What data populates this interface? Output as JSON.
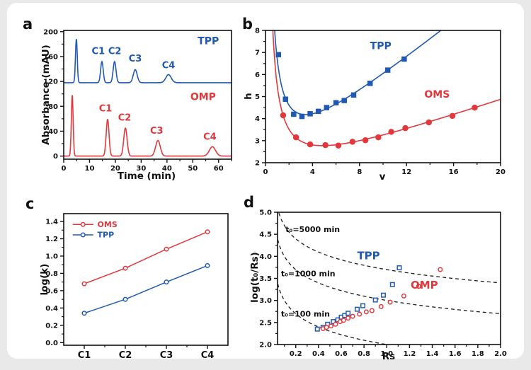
{
  "colors": {
    "blue": "#2059b2",
    "red": "#e2383c",
    "axis": "#111111"
  },
  "chart_data": [
    {
      "panel": "a",
      "type": "line",
      "xlabel": "Time (min)",
      "ylabel": "Absorbance (mAU)",
      "xlim": [
        0,
        65
      ],
      "ylim": [
        -5,
        202
      ],
      "xticks": [
        0,
        10,
        20,
        30,
        40,
        50,
        60
      ],
      "yticks": [
        0,
        40,
        80,
        120,
        160,
        200
      ],
      "xminor": 5,
      "yminor": 20,
      "series": [
        {
          "name": "TPP",
          "color": "blue",
          "baseline": 118,
          "peaks": [
            {
              "t": 4.9,
              "h": 70,
              "w": 0.35
            },
            {
              "t": 14.8,
              "h": 34,
              "w": 0.5
            },
            {
              "t": 19.7,
              "h": 34,
              "w": 0.55
            },
            {
              "t": 27.7,
              "h": 21,
              "w": 0.75
            },
            {
              "t": 40.6,
              "h": 13,
              "w": 1.05
            }
          ]
        },
        {
          "name": "OMP",
          "color": "red",
          "baseline": 0,
          "peaks": [
            {
              "t": 3.3,
              "h": 98,
              "w": 0.35
            },
            {
              "t": 17.0,
              "h": 59,
              "w": 0.55
            },
            {
              "t": 23.9,
              "h": 45,
              "w": 0.65
            },
            {
              "t": 36.5,
              "h": 25,
              "w": 0.9
            },
            {
              "t": 57.6,
              "h": 15,
              "w": 1.2
            }
          ]
        }
      ],
      "annotations": [
        {
          "text": "TPP",
          "x": 56,
          "y": 180,
          "color": "blue",
          "size": 14
        },
        {
          "text": "OMP",
          "x": 54,
          "y": 90,
          "color": "red",
          "size": 14
        },
        {
          "text": "C1",
          "x": 13.4,
          "y": 164,
          "color": "blue"
        },
        {
          "text": "C2",
          "x": 19.8,
          "y": 164,
          "color": "blue"
        },
        {
          "text": "C3",
          "x": 27.7,
          "y": 152,
          "color": "blue"
        },
        {
          "text": "C4",
          "x": 40.6,
          "y": 141,
          "color": "blue"
        },
        {
          "text": "C1",
          "x": 16.2,
          "y": 72,
          "color": "red"
        },
        {
          "text": "C2",
          "x": 23.6,
          "y": 57,
          "color": "red"
        },
        {
          "text": "C3",
          "x": 36.0,
          "y": 36,
          "color": "red"
        },
        {
          "text": "C4",
          "x": 56.6,
          "y": 26,
          "color": "red"
        }
      ]
    },
    {
      "panel": "b",
      "type": "scatter",
      "xlabel": "v",
      "ylabel": "h",
      "xlim": [
        0,
        20
      ],
      "ylim": [
        2,
        8
      ],
      "xticks": [
        0,
        4,
        8,
        12,
        16,
        20
      ],
      "yticks": [
        2,
        3,
        4,
        5,
        6,
        7,
        8
      ],
      "xminor": 2,
      "yminor": 0.5,
      "series": [
        {
          "name": "TPP",
          "color": "blue",
          "marker": "square-filled",
          "size": 6.5,
          "fit": {
            "A": 1.25,
            "B": 5.0,
            "C": 0.43
          },
          "points": [
            [
              1.1,
              6.9
            ],
            [
              1.7,
              4.88
            ],
            [
              2.4,
              4.2
            ],
            [
              3.1,
              4.1
            ],
            [
              3.8,
              4.22
            ],
            [
              4.5,
              4.33
            ],
            [
              5.2,
              4.5
            ],
            [
              6.0,
              4.72
            ],
            [
              6.7,
              4.82
            ],
            [
              7.5,
              5.07
            ],
            [
              8.9,
              5.6
            ],
            [
              10.4,
              6.2
            ],
            [
              11.8,
              6.7
            ]
          ]
        },
        {
          "name": "OMS",
          "color": "red",
          "marker": "circle-filled",
          "size": 7.5,
          "fit": {
            "A": 1.0,
            "B": 4.3,
            "C": 0.183
          },
          "points": [
            [
              1.5,
              4.15
            ],
            [
              2.6,
              3.15
            ],
            [
              3.8,
              2.83
            ],
            [
              5.1,
              2.8
            ],
            [
              6.2,
              2.78
            ],
            [
              7.4,
              2.95
            ],
            [
              8.5,
              3.02
            ],
            [
              9.6,
              3.15
            ],
            [
              10.7,
              3.4
            ],
            [
              11.9,
              3.57
            ],
            [
              13.9,
              3.83
            ],
            [
              15.9,
              4.12
            ],
            [
              17.8,
              4.5
            ]
          ]
        }
      ],
      "annotations": [
        {
          "text": "TPP",
          "x": 9.8,
          "y": 7.15,
          "color": "blue",
          "size": 14
        },
        {
          "text": "OMS",
          "x": 14.6,
          "y": 4.95,
          "color": "red",
          "size": 14
        }
      ]
    },
    {
      "panel": "c",
      "type": "line",
      "xlabel": "",
      "ylabel": "log(k)",
      "categories": [
        "C1",
        "C2",
        "C3",
        "C4"
      ],
      "xlim": [
        0,
        4
      ],
      "ylim": [
        -0.03,
        1.49
      ],
      "yticks": [
        0,
        0.2,
        0.4,
        0.6,
        0.8,
        1.0,
        1.2,
        1.4
      ],
      "ydec": 1,
      "yminor": 0.1,
      "xcats": [
        {
          "label": "C1",
          "x": 0.5
        },
        {
          "label": "C2",
          "x": 1.5
        },
        {
          "label": "C3",
          "x": 2.5
        },
        {
          "label": "C4",
          "x": 3.5
        }
      ],
      "xminors": [
        1,
        2,
        3
      ],
      "series": [
        {
          "name": "OMS",
          "color": "red",
          "marker": "circle-open",
          "size": 5.5,
          "connect": true,
          "points": [
            [
              0.5,
              0.68
            ],
            [
              1.5,
              0.86
            ],
            [
              2.5,
              1.08
            ],
            [
              3.5,
              1.28
            ]
          ]
        },
        {
          "name": "TPP",
          "color": "blue",
          "marker": "circle-open",
          "size": 5.5,
          "connect": true,
          "points": [
            [
              0.5,
              0.34
            ],
            [
              1.5,
              0.5
            ],
            [
              2.5,
              0.7
            ],
            [
              3.5,
              0.89
            ]
          ]
        }
      ],
      "legend": {
        "x1": 0.22,
        "x2": 0.72,
        "tx": 0.82,
        "items": [
          {
            "label": "OMS",
            "color": "red",
            "y": 1.365
          },
          {
            "label": "TPP",
            "color": "blue",
            "y": 1.245
          }
        ]
      }
    },
    {
      "panel": "d",
      "type": "scatter",
      "xlabel": "Rs",
      "ylabel": "log(t₀/Rs)",
      "xlim": [
        0.04,
        2.0
      ],
      "ylim": [
        2.0,
        5.0
      ],
      "xticks": [
        0.2,
        0.4,
        0.6,
        0.8,
        1.0,
        1.2,
        1.4,
        1.6,
        1.8,
        2.0
      ],
      "yticks": [
        2.0,
        2.5,
        3.0,
        3.5,
        4.0,
        4.5,
        5.0
      ],
      "xdec": 1,
      "ydec": 1,
      "xminor": 0.1,
      "yminor": 0.25,
      "isochrones": [
        {
          "t0": 5000,
          "label": "t₀=5000 min",
          "lx": 0.11,
          "ly": 4.55
        },
        {
          "t0": 1000,
          "label": "t₀=1000 min",
          "lx": 0.07,
          "ly": 3.55
        },
        {
          "t0": 100,
          "label": "t₀=100 min",
          "lx": 0.07,
          "ly": 2.63
        }
      ],
      "series": [
        {
          "name": "TPP",
          "color": "blue",
          "marker": "square-open",
          "size": 5.5,
          "points": [
            [
              0.39,
              2.35
            ],
            [
              0.44,
              2.39
            ],
            [
              0.48,
              2.46
            ],
            [
              0.53,
              2.52
            ],
            [
              0.57,
              2.56
            ],
            [
              0.6,
              2.62
            ],
            [
              0.63,
              2.66
            ],
            [
              0.66,
              2.71
            ],
            [
              0.74,
              2.8
            ],
            [
              0.79,
              2.88
            ],
            [
              0.9,
              3.01
            ],
            [
              0.97,
              3.12
            ],
            [
              1.05,
              3.36
            ],
            [
              1.11,
              3.74
            ]
          ]
        },
        {
          "name": "OMP",
          "color": "red",
          "marker": "circle-open",
          "size": 5.5,
          "points": [
            [
              0.44,
              2.36
            ],
            [
              0.47,
              2.39
            ],
            [
              0.51,
              2.42
            ],
            [
              0.55,
              2.46
            ],
            [
              0.59,
              2.52
            ],
            [
              0.62,
              2.55
            ],
            [
              0.66,
              2.6
            ],
            [
              0.7,
              2.64
            ],
            [
              0.76,
              2.69
            ],
            [
              0.82,
              2.74
            ],
            [
              0.87,
              2.77
            ],
            [
              0.95,
              2.86
            ],
            [
              1.03,
              2.96
            ],
            [
              1.15,
              3.1
            ],
            [
              1.28,
              3.32
            ],
            [
              1.47,
              3.7
            ]
          ]
        }
      ],
      "annotations": [
        {
          "text": "TPP",
          "x": 0.84,
          "y": 3.93,
          "color": "blue",
          "size": 15
        },
        {
          "text": "OMP",
          "x": 1.33,
          "y": 3.27,
          "color": "red",
          "size": 15
        }
      ]
    }
  ]
}
